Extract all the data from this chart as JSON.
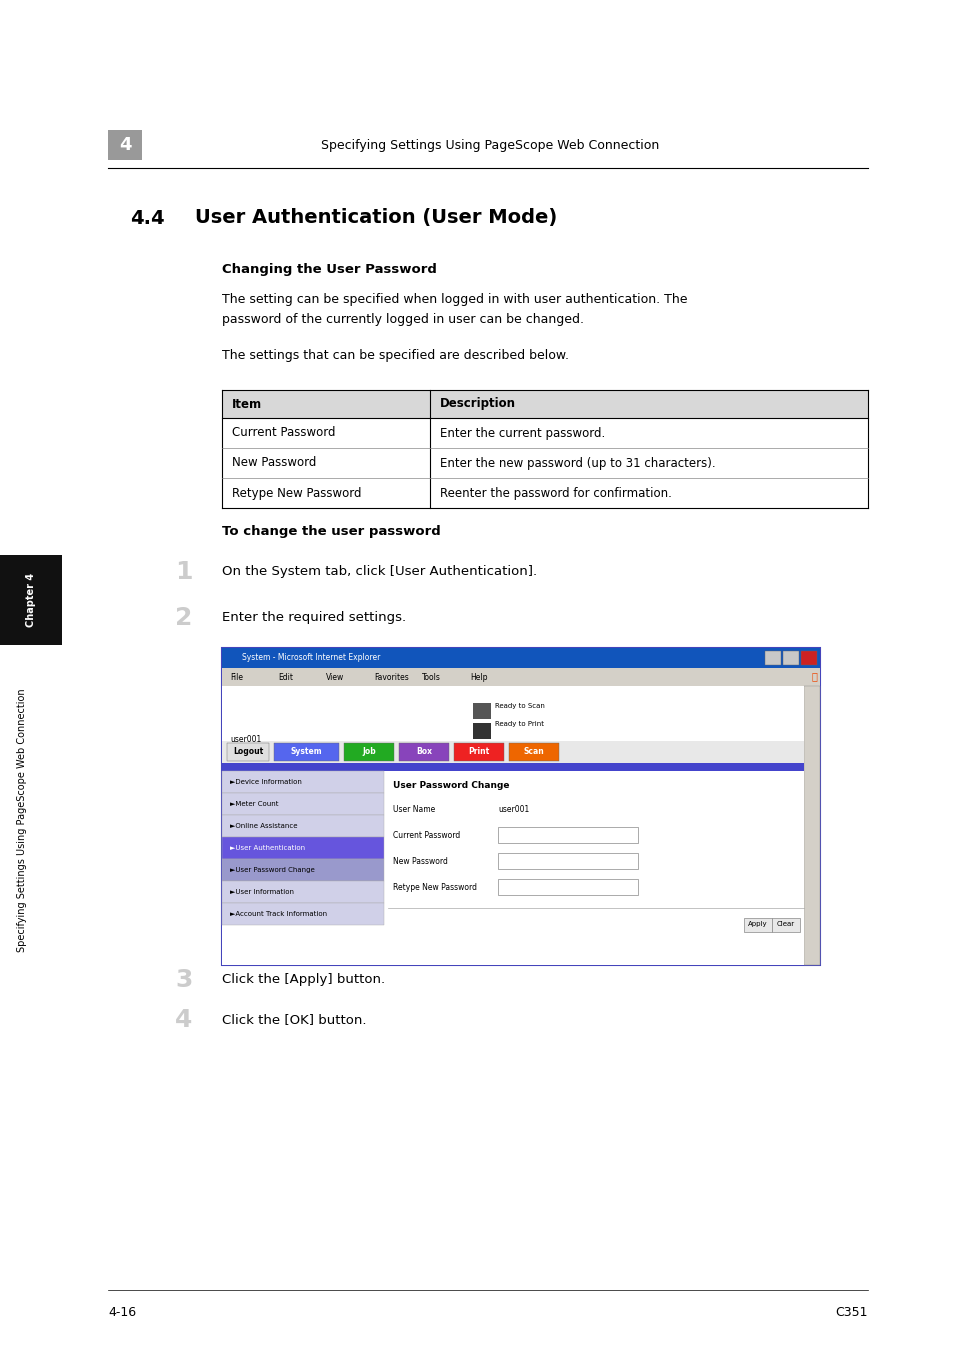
{
  "bg_color": "#ffffff",
  "page_width": 9.54,
  "page_height": 13.5,
  "header_number": "4",
  "header_text": "Specifying Settings Using PageScope Web Connection",
  "section_number": "4.4",
  "section_title": "User Authentication (User Mode)",
  "subsection_title": "Changing the User Password",
  "body_text1_line1": "The setting can be specified when logged in with user authentication. The",
  "body_text1_line2": "password of the currently logged in user can be changed.",
  "body_text2": "The settings that can be specified are described below.",
  "table_header": [
    "Item",
    "Description"
  ],
  "table_rows": [
    [
      "Current Password",
      "Enter the current password."
    ],
    [
      "New Password",
      "Enter the new password (up to 31 characters)."
    ],
    [
      "Retype New Password",
      "Reenter the password for confirmation."
    ]
  ],
  "steps_title": "To change the user password",
  "steps": [
    "On the System tab, click [User Authentication].",
    "Enter the required settings.",
    "Click the [Apply] button.",
    "Click the [OK] button."
  ],
  "footer_left": "4-16",
  "footer_right": "C351",
  "sidebar_text": "Specifying Settings Using PageScope Web Connection",
  "sidebar_chapter": "Chapter 4"
}
